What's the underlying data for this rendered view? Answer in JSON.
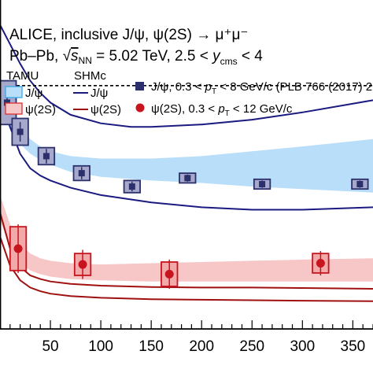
{
  "chart_data": {
    "type": "scatter",
    "x_ticks": [
      "50",
      "100",
      "150",
      "200",
      "250",
      "300",
      "350"
    ],
    "xlim": [
      0,
      370
    ],
    "ylim": [
      0,
      1.3
    ],
    "reference_line_y": 1.0,
    "title_line1": "ALICE, inclusive J/ψ, ψ(2S) → μ⁺μ⁻",
    "title_line2_prefix": "Pb–Pb, ",
    "title_sqrt_s": "s",
    "title_sqrt_sub": "NN",
    "title_line2_mid": " = 5.02 TeV, 2.5 < ",
    "title_y": "y",
    "title_y_sub": "cms",
    "title_line2_suffix": " < 4",
    "legend": {
      "tamu_header": "TAMU",
      "shmc_header": "SHMc",
      "tamu_jpsi": "J/ψ",
      "tamu_psi2s": "ψ(2S)",
      "shmc_jpsi": "J/ψ",
      "shmc_psi2s": "ψ(2S)",
      "data_jpsi_pre": "J/ψ, 0.3 < ",
      "data_jpsi_pt": "p",
      "data_jpsi_sub": "T",
      "data_jpsi_post": " < 8 GeV/c (PLB 766 (2017) 212)",
      "data_psi2s_pre": "ψ(2S), 0.3 < ",
      "data_psi2s_pt": "p",
      "data_psi2s_sub": "T",
      "data_psi2s_post": " < 12 GeV/c"
    },
    "series": [
      {
        "name": "J/ψ, 0.3 < pT < 8 GeV/c (PLB 766 (2017) 212)",
        "color": "#2b2f6b",
        "fill": "#a7a9cc",
        "marker": "square",
        "points": [
          {
            "x": 7,
            "y": 0.93,
            "ystat": 0.04,
            "ysys": 0.09,
            "xhalf": 9
          },
          {
            "x": 20,
            "y": 0.81,
            "ystat": 0.04,
            "ysys": 0.055,
            "xhalf": 8
          },
          {
            "x": 46,
            "y": 0.71,
            "ystat": 0.03,
            "ysys": 0.035,
            "xhalf": 8
          },
          {
            "x": 81,
            "y": 0.64,
            "ystat": 0.025,
            "ysys": 0.03,
            "xhalf": 8
          },
          {
            "x": 131,
            "y": 0.585,
            "ystat": 0.02,
            "ysys": 0.025,
            "xhalf": 8
          },
          {
            "x": 186,
            "y": 0.62,
            "ystat": 0.015,
            "ysys": 0.02,
            "xhalf": 8
          },
          {
            "x": 260,
            "y": 0.595,
            "ystat": 0.015,
            "ysys": 0.02,
            "xhalf": 8
          },
          {
            "x": 357,
            "y": 0.595,
            "ystat": 0.015,
            "ysys": 0.02,
            "xhalf": 8
          }
        ]
      },
      {
        "name": "ψ(2S), 0.3 < pT < 12 GeV/c",
        "color": "#c8141e",
        "fill": "#f1a9a9",
        "marker": "circle",
        "points": [
          {
            "x": 18,
            "y": 0.33,
            "ystat": 0.1,
            "ysys": 0.09,
            "xhalf": 8
          },
          {
            "x": 82,
            "y": 0.265,
            "ystat": 0.06,
            "ysys": 0.045,
            "xhalf": 8
          },
          {
            "x": 168,
            "y": 0.225,
            "ystat": 0.06,
            "ysys": 0.05,
            "xhalf": 8
          },
          {
            "x": 318,
            "y": 0.27,
            "ystat": 0.05,
            "ysys": 0.04,
            "xhalf": 8
          }
        ]
      }
    ],
    "models": {
      "tamu_jpsi_band": {
        "color": "#b8defa",
        "x": [
          0,
          10,
          20,
          30,
          40,
          50,
          70,
          100,
          150,
          200,
          250,
          300,
          370
        ],
        "upper": [
          0.98,
          0.9,
          0.83,
          0.78,
          0.75,
          0.73,
          0.71,
          0.7,
          0.7,
          0.71,
          0.73,
          0.75,
          0.78
        ],
        "lower": [
          0.9,
          0.82,
          0.76,
          0.72,
          0.695,
          0.675,
          0.645,
          0.625,
          0.61,
          0.6,
          0.585,
          0.575,
          0.56
        ]
      },
      "tamu_psi2s_band": {
        "color": "#f7c6c6",
        "x": [
          0,
          10,
          20,
          30,
          40,
          50,
          70,
          100,
          150,
          200,
          250,
          300,
          370
        ],
        "upper": [
          0.55,
          0.43,
          0.35,
          0.31,
          0.29,
          0.28,
          0.27,
          0.265,
          0.27,
          0.275,
          0.28,
          0.285,
          0.29
        ],
        "lower": [
          0.45,
          0.33,
          0.27,
          0.24,
          0.225,
          0.215,
          0.205,
          0.2,
          0.195,
          0.195,
          0.195,
          0.195,
          0.195
        ]
      },
      "shmc_jpsi_upper": {
        "color": "#1a1a80",
        "x": [
          0,
          10,
          20,
          30,
          40,
          50,
          70,
          100,
          130,
          150,
          200,
          250,
          300,
          370
        ],
        "y": [
          1.25,
          1.17,
          1.09,
          1.02,
          0.97,
          0.93,
          0.88,
          0.845,
          0.83,
          0.83,
          0.84,
          0.86,
          0.89,
          0.94
        ]
      },
      "shmc_jpsi_lower": {
        "color": "#1a1a80",
        "x": [
          0,
          10,
          20,
          30,
          40,
          50,
          70,
          100,
          150,
          200,
          250,
          300,
          370
        ],
        "y": [
          0.98,
          0.83,
          0.72,
          0.66,
          0.63,
          0.61,
          0.58,
          0.55,
          0.52,
          0.5,
          0.49,
          0.49,
          0.5
        ]
      },
      "shmc_psi2s_upper": {
        "color": "#a01010",
        "x": [
          0,
          10,
          20,
          30,
          40,
          50,
          70,
          100,
          150,
          200,
          250,
          300,
          370
        ],
        "y": [
          0.48,
          0.33,
          0.255,
          0.22,
          0.205,
          0.195,
          0.185,
          0.178,
          0.172,
          0.17,
          0.17,
          0.168,
          0.165
        ]
      },
      "shmc_psi2s_lower": {
        "color": "#a01010",
        "x": [
          0,
          10,
          20,
          30,
          40,
          50,
          70,
          100,
          150,
          200,
          250,
          300,
          370
        ],
        "y": [
          0.38,
          0.26,
          0.2,
          0.17,
          0.155,
          0.145,
          0.135,
          0.128,
          0.122,
          0.12,
          0.118,
          0.116,
          0.114
        ]
      }
    }
  }
}
